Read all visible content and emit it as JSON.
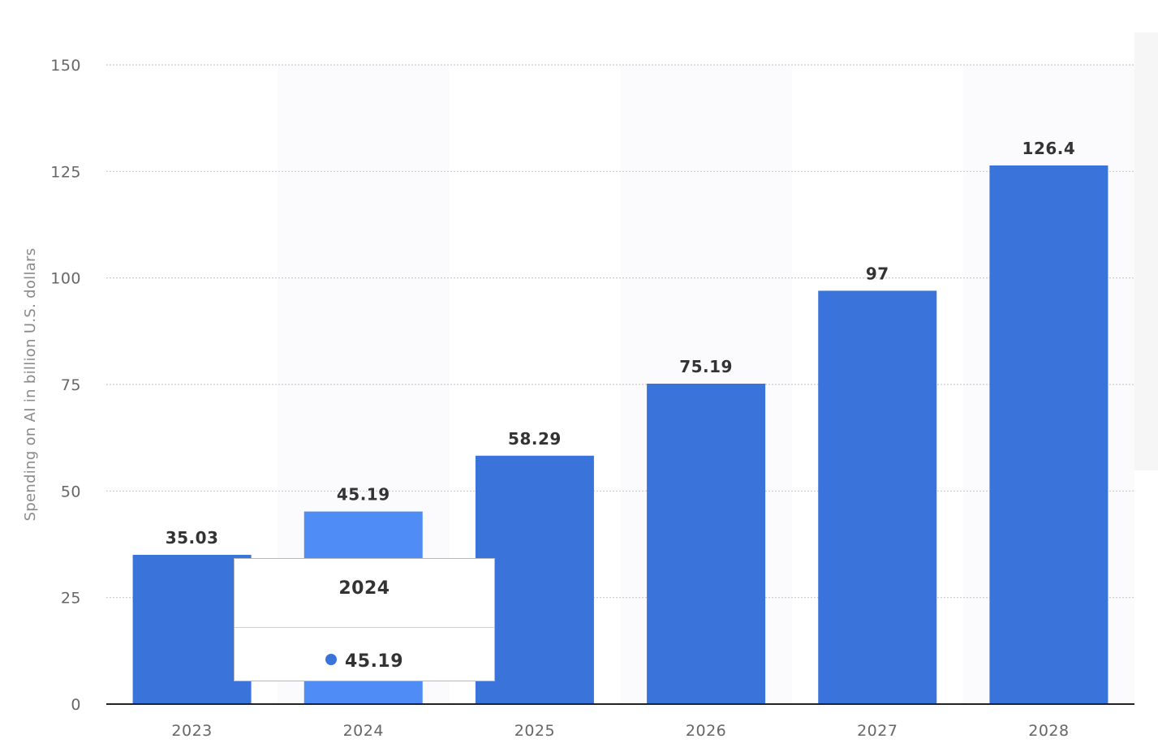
{
  "chart_data": {
    "type": "bar",
    "categories": [
      "2023",
      "2024",
      "2025",
      "2026",
      "2027",
      "2028"
    ],
    "values": [
      35.03,
      45.19,
      58.29,
      75.19,
      97,
      126.4
    ],
    "value_labels": [
      "35.03",
      "45.19",
      "58.29",
      "75.19",
      "97",
      "126.4"
    ],
    "title": "",
    "xlabel": "",
    "ylabel": "Spending on AI in billion U.S. dollars",
    "ylim": [
      0,
      150
    ],
    "yticks": [
      "0",
      "25",
      "50",
      "75",
      "100",
      "125",
      "150"
    ],
    "grid": true,
    "legend": "none",
    "bar_color": "#3a74db",
    "highlight_color": "#4f8cf5",
    "highlight_category": "2024"
  },
  "tooltip": {
    "title": "2024",
    "value": "45.19",
    "dot_color": "#3a74db"
  }
}
